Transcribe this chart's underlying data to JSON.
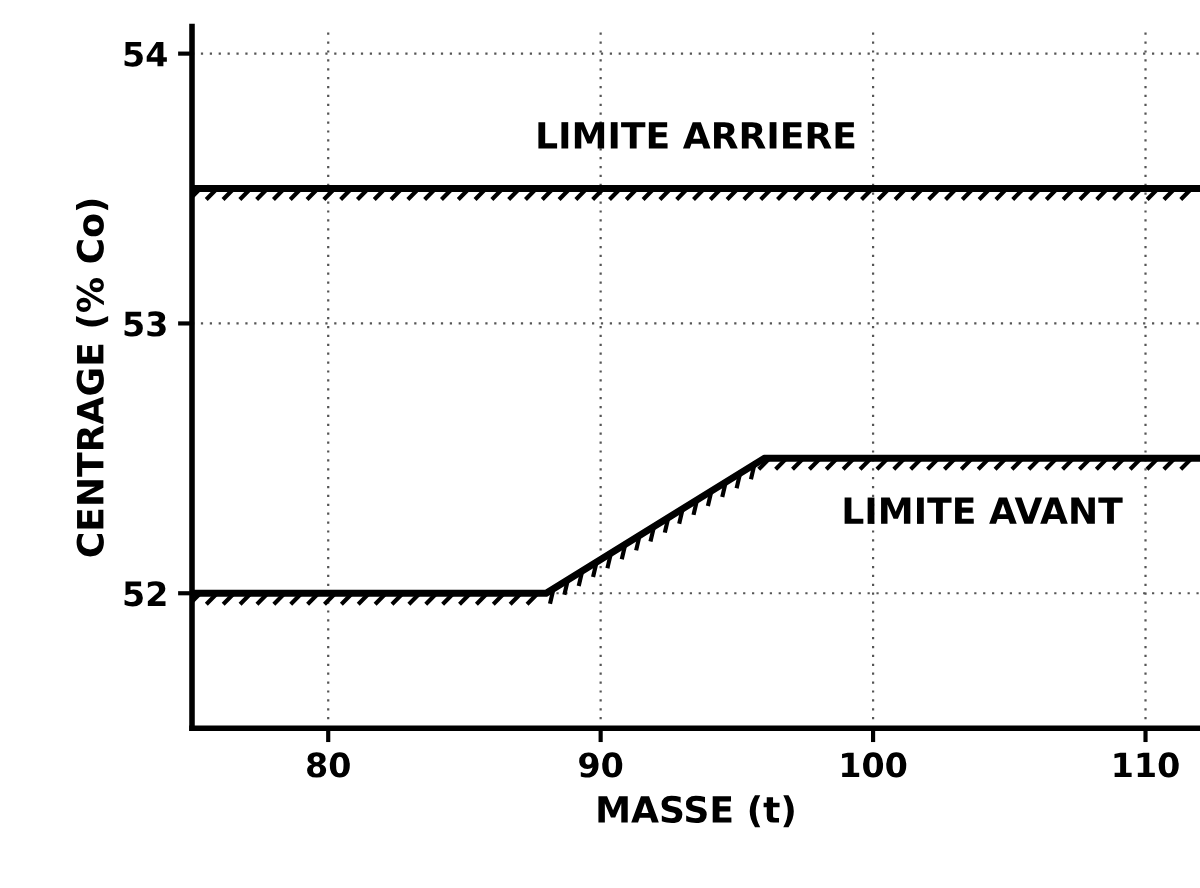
{
  "chart_data": {
    "type": "line",
    "xlabel": "MASSE (t)",
    "ylabel": "CENTRAGE (% Co)",
    "xlim": [
      75,
      112
    ],
    "xticks": [
      80,
      90,
      100,
      110
    ],
    "ylim": [
      51.5,
      54.1
    ],
    "yticks": [
      52,
      53,
      54
    ],
    "grid": true,
    "line_style": "solid",
    "marker": "none",
    "series": [
      {
        "name": "LIMITE ARRIERE",
        "color": "#000000",
        "x": [
          75,
          112
        ],
        "values": [
          53.5,
          53.5
        ]
      },
      {
        "name": "LIMITE AVANT",
        "color": "#000000",
        "x": [
          75,
          88,
          96,
          112
        ],
        "values": [
          52,
          52,
          52.5,
          52.5
        ]
      }
    ]
  }
}
